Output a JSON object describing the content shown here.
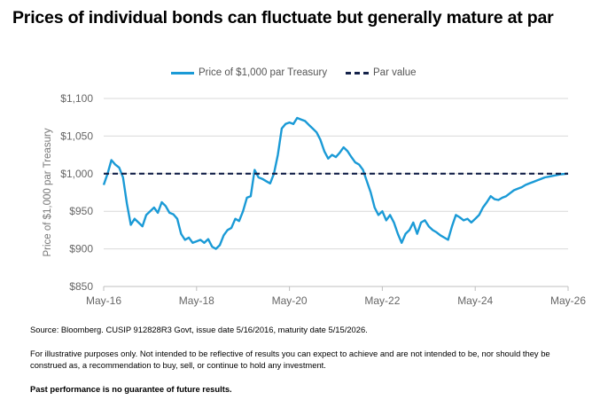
{
  "title": "Prices of individual bonds can fluctuate but generally mature at par",
  "legend": {
    "series1": "Price of $1,000 par Treasury",
    "series2": "Par value"
  },
  "notes": {
    "source": "Source: Bloomberg. CUSIP 912828R3 Govt, issue date 5/16/2016, maturity date 5/15/2026.",
    "disclaimer": "For illustrative purposes only. Not intended to be reflective of results you can expect to achieve and are not intended to be, nor should they be construed as, a recommendation to buy, sell, or continue to hold any investment.",
    "past_performance": "Past performance is no guarantee of future results."
  },
  "colors": {
    "price_line": "#1a9ad6",
    "par_line": "#14224a",
    "grid": "#d9d9d9",
    "axis": "#bfbfbf"
  },
  "chart_data": {
    "type": "line",
    "title": "Prices of individual bonds can fluctuate but generally mature at par",
    "xlabel": "",
    "ylabel": "Price of $1,000 par Treasury",
    "ylim": [
      850,
      1100
    ],
    "xlim": [
      "2016-05",
      "2026-05"
    ],
    "x_ticks": [
      "May-16",
      "May-18",
      "May-20",
      "May-22",
      "May-24",
      "May-26"
    ],
    "y_ticks": [
      "$850",
      "$900",
      "$950",
      "$1,000",
      "$1,050",
      "$1,100"
    ],
    "y_tick_values": [
      850,
      900,
      950,
      1000,
      1050,
      1100
    ],
    "grid": true,
    "legend_position": "top-center",
    "series": [
      {
        "name": "Price of $1,000 par Treasury",
        "style": "solid",
        "points": [
          [
            "2016-05",
            985
          ],
          [
            "2016-06",
            1000
          ],
          [
            "2016-07",
            1018
          ],
          [
            "2016-08",
            1012
          ],
          [
            "2016-09",
            1008
          ],
          [
            "2016-10",
            995
          ],
          [
            "2016-11",
            960
          ],
          [
            "2016-12",
            932
          ],
          [
            "2017-01",
            940
          ],
          [
            "2017-02",
            935
          ],
          [
            "2017-03",
            930
          ],
          [
            "2017-04",
            945
          ],
          [
            "2017-05",
            950
          ],
          [
            "2017-06",
            955
          ],
          [
            "2017-07",
            948
          ],
          [
            "2017-08",
            962
          ],
          [
            "2017-09",
            957
          ],
          [
            "2017-10",
            948
          ],
          [
            "2017-11",
            946
          ],
          [
            "2017-12",
            940
          ],
          [
            "2018-01",
            920
          ],
          [
            "2018-02",
            912
          ],
          [
            "2018-03",
            915
          ],
          [
            "2018-04",
            908
          ],
          [
            "2018-05",
            910
          ],
          [
            "2018-06",
            912
          ],
          [
            "2018-07",
            908
          ],
          [
            "2018-08",
            913
          ],
          [
            "2018-09",
            903
          ],
          [
            "2018-10",
            900
          ],
          [
            "2018-11",
            905
          ],
          [
            "2018-12",
            918
          ],
          [
            "2019-01",
            925
          ],
          [
            "2019-02",
            928
          ],
          [
            "2019-03",
            940
          ],
          [
            "2019-04",
            937
          ],
          [
            "2019-05",
            950
          ],
          [
            "2019-06",
            968
          ],
          [
            "2019-07",
            970
          ],
          [
            "2019-08",
            1005
          ],
          [
            "2019-09",
            995
          ],
          [
            "2019-10",
            993
          ],
          [
            "2019-11",
            990
          ],
          [
            "2019-12",
            987
          ],
          [
            "2020-01",
            1000
          ],
          [
            "2020-02",
            1025
          ],
          [
            "2020-03",
            1060
          ],
          [
            "2020-04",
            1066
          ],
          [
            "2020-05",
            1068
          ],
          [
            "2020-06",
            1066
          ],
          [
            "2020-07",
            1074
          ],
          [
            "2020-08",
            1072
          ],
          [
            "2020-09",
            1070
          ],
          [
            "2020-10",
            1065
          ],
          [
            "2020-11",
            1060
          ],
          [
            "2020-12",
            1055
          ],
          [
            "2021-01",
            1045
          ],
          [
            "2021-02",
            1030
          ],
          [
            "2021-03",
            1020
          ],
          [
            "2021-04",
            1025
          ],
          [
            "2021-05",
            1022
          ],
          [
            "2021-06",
            1028
          ],
          [
            "2021-07",
            1035
          ],
          [
            "2021-08",
            1030
          ],
          [
            "2021-09",
            1022
          ],
          [
            "2021-10",
            1015
          ],
          [
            "2021-11",
            1012
          ],
          [
            "2021-12",
            1005
          ],
          [
            "2022-01",
            990
          ],
          [
            "2022-02",
            975
          ],
          [
            "2022-03",
            955
          ],
          [
            "2022-04",
            945
          ],
          [
            "2022-05",
            950
          ],
          [
            "2022-06",
            938
          ],
          [
            "2022-07",
            945
          ],
          [
            "2022-08",
            935
          ],
          [
            "2022-09",
            920
          ],
          [
            "2022-10",
            908
          ],
          [
            "2022-11",
            920
          ],
          [
            "2022-12",
            925
          ],
          [
            "2023-01",
            935
          ],
          [
            "2023-02",
            920
          ],
          [
            "2023-03",
            935
          ],
          [
            "2023-04",
            938
          ],
          [
            "2023-05",
            930
          ],
          [
            "2023-06",
            925
          ],
          [
            "2023-07",
            922
          ],
          [
            "2023-08",
            918
          ],
          [
            "2023-09",
            915
          ],
          [
            "2023-10",
            912
          ],
          [
            "2023-11",
            930
          ],
          [
            "2023-12",
            945
          ],
          [
            "2024-01",
            942
          ],
          [
            "2024-02",
            938
          ],
          [
            "2024-03",
            940
          ],
          [
            "2024-04",
            935
          ],
          [
            "2024-05",
            940
          ],
          [
            "2024-06",
            945
          ],
          [
            "2024-07",
            955
          ],
          [
            "2024-08",
            962
          ],
          [
            "2024-09",
            970
          ],
          [
            "2024-10",
            966
          ],
          [
            "2024-11",
            965
          ],
          [
            "2024-12",
            968
          ],
          [
            "2025-01",
            970
          ],
          [
            "2025-02",
            974
          ],
          [
            "2025-03",
            978
          ],
          [
            "2025-04",
            980
          ],
          [
            "2025-05",
            982
          ],
          [
            "2025-06",
            985
          ],
          [
            "2025-07",
            987
          ],
          [
            "2025-08",
            989
          ],
          [
            "2025-09",
            991
          ],
          [
            "2025-10",
            993
          ],
          [
            "2025-11",
            995
          ],
          [
            "2025-12",
            996
          ],
          [
            "2026-01",
            997
          ],
          [
            "2026-02",
            998
          ],
          [
            "2026-03",
            999
          ],
          [
            "2026-04",
            999.5
          ],
          [
            "2026-05",
            1000
          ]
        ]
      },
      {
        "name": "Par value",
        "style": "dashed",
        "points": [
          [
            "2016-05",
            1000
          ],
          [
            "2026-05",
            1000
          ]
        ]
      }
    ]
  }
}
